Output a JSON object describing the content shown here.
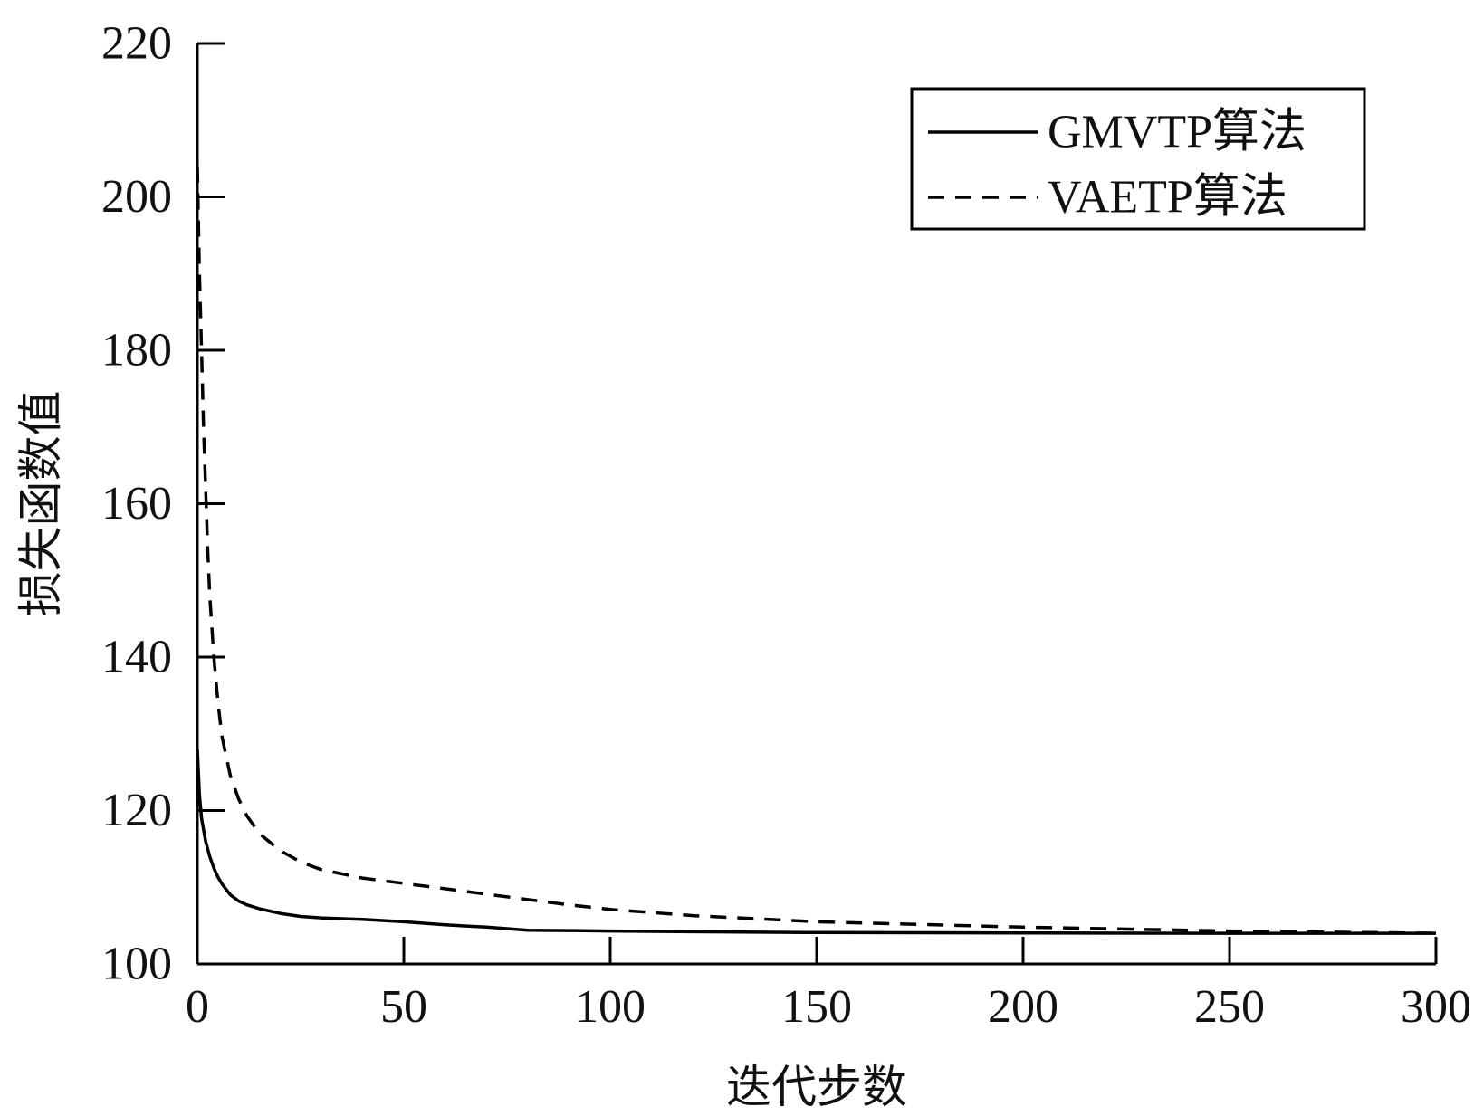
{
  "chart_data": {
    "type": "line",
    "title": "",
    "xlabel": "迭代步数",
    "ylabel": "损失函数值",
    "xlim": [
      0,
      300
    ],
    "ylim": [
      100,
      220
    ],
    "xticks": [
      0,
      50,
      100,
      150,
      200,
      250,
      300
    ],
    "yticks": [
      100,
      120,
      140,
      160,
      180,
      200,
      220
    ],
    "grid": false,
    "legend_position": "top-right",
    "series": [
      {
        "name": "GMVTP算法",
        "style": "solid",
        "color": "#000000",
        "x": [
          0,
          0.5,
          1,
          2,
          3,
          4,
          5,
          6,
          8,
          10,
          12,
          15,
          20,
          25,
          30,
          40,
          50,
          60,
          70,
          80,
          90,
          100,
          120,
          150,
          200,
          250,
          300
        ],
        "y": [
          128,
          122,
          119,
          116,
          114,
          112.5,
          111.3,
          110.4,
          109,
          108.2,
          107.7,
          107.2,
          106.6,
          106.2,
          106,
          105.8,
          105.5,
          105.1,
          104.8,
          104.4,
          104.35,
          104.3,
          104.2,
          104.1,
          104.05,
          104.0,
          104.0
        ]
      },
      {
        "name": "VAETP算法",
        "style": "dashed",
        "color": "#000000",
        "x": [
          0,
          0.5,
          1,
          1.5,
          2,
          2.5,
          3,
          4,
          5,
          6,
          8,
          10,
          12,
          15,
          20,
          25,
          30,
          40,
          50,
          60,
          70,
          80,
          90,
          100,
          120,
          150,
          200,
          250,
          300
        ],
        "y": [
          204,
          190,
          180,
          170,
          162,
          154,
          148,
          140,
          134,
          129.5,
          124.5,
          121.5,
          119.3,
          117,
          114.8,
          113.3,
          112.3,
          111.2,
          110.5,
          109.8,
          109.1,
          108.4,
          107.7,
          107.1,
          106.3,
          105.5,
          104.8,
          104.3,
          104.0
        ]
      }
    ]
  }
}
